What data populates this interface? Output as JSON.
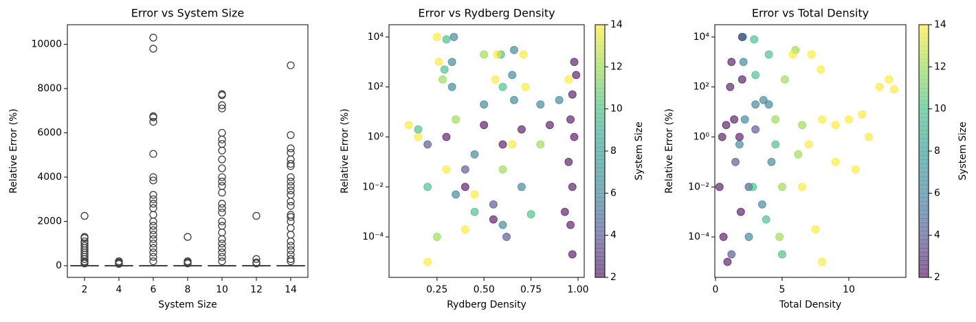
{
  "chart_data": [
    {
      "type": "box",
      "title": "Error vs System Size",
      "xlabel": "System Size",
      "ylabel": "Relative Error (%)",
      "categories": [
        "2",
        "4",
        "6",
        "8",
        "10",
        "12",
        "14"
      ],
      "q1": [
        0.5,
        0.5,
        0.5,
        0.5,
        0.5,
        0.5,
        0.5
      ],
      "median": [
        1.5,
        1.5,
        1.5,
        1.5,
        1.5,
        1.5,
        1.5
      ],
      "q3": [
        5,
        5,
        5,
        5,
        5,
        5,
        5
      ],
      "whisker_low": [
        0,
        0,
        0,
        0,
        0,
        0,
        0
      ],
      "whisker_high": [
        12,
        12,
        12,
        12,
        12,
        12,
        12
      ],
      "outliers": [
        [
          2250,
          1300,
          1250,
          1100,
          1000,
          900,
          800,
          700,
          600,
          500,
          400,
          300,
          200,
          150,
          100
        ],
        [
          200,
          150,
          100,
          80
        ],
        [
          10300,
          9800,
          6750,
          6700,
          6500,
          5050,
          4000,
          3850,
          3200,
          3000,
          2800,
          2600,
          2300,
          2000,
          1800,
          1600,
          1400,
          1200,
          1000,
          800,
          600,
          400,
          200
        ],
        [
          1300,
          200,
          150,
          100
        ],
        [
          7750,
          7700,
          7250,
          7100,
          6000,
          5700,
          5500,
          5200,
          4800,
          4400,
          4000,
          3800,
          3600,
          3300,
          2800,
          2600,
          2400,
          2000,
          1800,
          1500,
          1200,
          1000,
          800,
          600,
          400,
          200
        ],
        [
          2250,
          300,
          150,
          100
        ],
        [
          9050,
          5900,
          5300,
          5100,
          4800,
          4600,
          4500,
          4000,
          3800,
          3600,
          3400,
          3200,
          2900,
          2700,
          2300,
          2200,
          2000,
          1700,
          1400,
          1100,
          900,
          700,
          500,
          300,
          200
        ]
      ],
      "color": "#3f3f3f",
      "ylim": [
        -527,
        10884
      ],
      "yticks": [
        0,
        2000,
        4000,
        6000,
        8000,
        10000
      ]
    },
    {
      "type": "scatter",
      "title": "Error vs Rydberg Density",
      "xlabel": "Rydberg Density",
      "ylabel": "Relative Error (%)",
      "yscale": "log",
      "colormap": "viridis",
      "alpha": 0.6,
      "x": [
        0.98,
        0.99,
        0.97,
        0.96,
        0.98,
        0.95,
        0.97,
        0.93,
        0.96,
        0.97,
        0.5,
        0.7,
        0.85,
        0.6,
        0.4,
        0.55,
        0.3,
        0.34,
        0.33,
        0.33,
        0.66,
        0.65,
        0.66,
        0.5,
        0.8,
        0.9,
        0.45,
        0.7,
        0.6,
        0.35,
        0.2,
        0.4,
        0.55,
        0.62,
        0.3,
        0.29,
        0.59,
        0.6,
        0.2,
        0.45,
        0.75,
        0.15,
        0.28,
        0.5,
        0.35,
        0.6,
        0.25,
        0.8,
        0.25,
        0.26,
        0.57,
        0.56,
        0.71,
        0.72,
        0.15,
        0.3,
        0.45,
        0.2,
        0.95,
        0.1,
        0.65,
        0.4
      ],
      "y": [
        1000,
        300,
        50,
        5,
        1,
        0.1,
        0.01,
        0.001,
        0.0003,
        2e-05,
        3,
        2,
        3,
        0.5,
        0.01,
        0.0005,
        1,
        10000,
        1000,
        100,
        3000,
        300,
        30,
        20,
        20,
        30,
        0.2,
        0.01,
        0.0003,
        0.005,
        0.5,
        0.05,
        0.002,
        0.0001,
        8000,
        500,
        2000,
        100,
        0.01,
        0.001,
        0.0008,
        2,
        200,
        2000,
        5,
        0.05,
        0.0001,
        0.5,
        10000,
        1000,
        2000,
        200,
        2000,
        100,
        1,
        0.05,
        0.005,
        1e-05,
        200,
        3,
        0.5,
        0.0002
      ],
      "c": [
        2,
        2,
        2,
        2,
        2,
        2,
        2,
        2,
        2,
        2,
        2,
        2,
        2,
        2,
        2,
        2,
        2,
        6,
        6,
        6,
        6,
        6,
        6,
        6,
        6,
        6,
        6,
        6,
        6,
        6,
        4,
        4,
        4,
        4,
        10,
        10,
        10,
        10,
        10,
        10,
        10,
        10,
        12,
        12,
        12,
        12,
        12,
        12,
        14,
        14,
        14,
        14,
        14,
        14,
        14,
        14,
        14,
        14,
        14,
        14,
        14,
        14
      ],
      "xlim": [
        -0.005,
        1.033
      ],
      "xticks": [
        0.25,
        {
          "value": 0.5,
          "label": "0.50"
        },
        0.75,
        {
          "value": 1.0,
          "label": "1.00"
        }
      ],
      "ylim": [
        2.4e-06,
        31000
      ],
      "yticks": [
        {
          "value": 0.0001,
          "label": "10⁻⁴"
        },
        {
          "value": 0.01,
          "label": "10⁻²"
        },
        {
          "value": 1,
          "label": "10⁰"
        },
        {
          "value": 100,
          "label": "10²"
        },
        {
          "value": 10000,
          "label": "10⁴"
        }
      ],
      "colorbar": {
        "label": "System Size",
        "lim": [
          2,
          14
        ],
        "ticks": [
          2,
          4,
          6,
          8,
          10,
          12,
          14
        ]
      }
    },
    {
      "type": "scatter",
      "title": "Error vs Total Density",
      "xlabel": "Total Density",
      "ylabel": "Relative Error (%)",
      "yscale": "log",
      "colormap": "viridis",
      "alpha": 0.6,
      "x": [
        0.5,
        0.3,
        0.6,
        0.9,
        1.2,
        1.1,
        1.4,
        1.8,
        2,
        2,
        1.9,
        0.8,
        1.5,
        2.5,
        1.2,
        3,
        2.05,
        2.1,
        3,
        4,
        2.5,
        3.5,
        4.2,
        1.8,
        3.6,
        2.2,
        2.9,
        3,
        4,
        2.8,
        3.8,
        4.5,
        5,
        4.5,
        6,
        5.2,
        5,
        6.2,
        4.8,
        6.5,
        5.8,
        7.2,
        7.9,
        8,
        9,
        10,
        11,
        12.3,
        13,
        13.4,
        6.5,
        7.5,
        9,
        10.5,
        8,
        11.5,
        7
      ],
      "y": [
        1,
        0.01,
        0.0001,
        1e-05,
        1000,
        100,
        5,
        1,
        10000,
        200,
        0.001,
        3,
        0.1,
        0.01,
        2e-05,
        2,
        10000,
        1000,
        20,
        20,
        0.0001,
        0.002,
        0.1,
        0.5,
        30,
        5,
        8000,
        300,
        2000,
        0.01,
        0.0005,
        0.5,
        2e-05,
        5,
        3000,
        200,
        0.01,
        0.2,
        0.0001,
        3,
        2000,
        2000,
        500,
        5,
        3,
        5,
        8,
        100,
        200,
        80,
        0.01,
        0.0002,
        0.1,
        0.05,
        1e-05,
        1,
        0.5
      ],
      "c": [
        2,
        2,
        2,
        2,
        2,
        2,
        2,
        2,
        2,
        2,
        2,
        2,
        4,
        4,
        4,
        4,
        6,
        6,
        6,
        6,
        6,
        6,
        6,
        6,
        6,
        6,
        10,
        10,
        10,
        10,
        10,
        10,
        10,
        12,
        12,
        12,
        12,
        12,
        12,
        12,
        14,
        14,
        14,
        14,
        14,
        14,
        14,
        14,
        14,
        14,
        14,
        14,
        14,
        14,
        14,
        14,
        14
      ],
      "xlim": [
        -0.05,
        14.28
      ],
      "xticks": [
        0,
        5,
        10
      ],
      "ylim": [
        2.4e-06,
        31000
      ],
      "yticks": [
        {
          "value": 0.0001,
          "label": "10⁻⁴"
        },
        {
          "value": 0.01,
          "label": "10⁻²"
        },
        {
          "value": 1,
          "label": "10⁰"
        },
        {
          "value": 100,
          "label": "10²"
        },
        {
          "value": 10000,
          "label": "10⁴"
        }
      ],
      "colorbar": {
        "label": "System Size",
        "lim": [
          2,
          14
        ],
        "ticks": [
          2,
          4,
          6,
          8,
          10,
          12,
          14
        ]
      }
    }
  ]
}
